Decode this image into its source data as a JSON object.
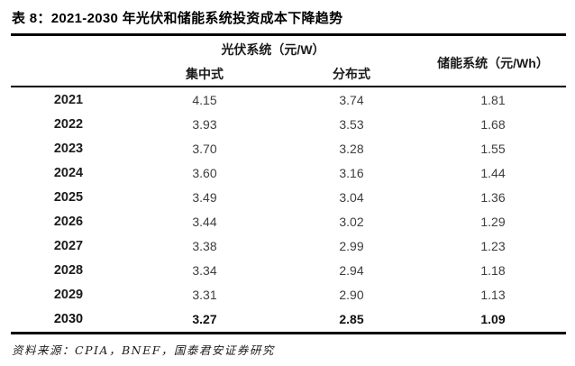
{
  "title": "表 8：2021-2030 年光伏和储能系统投资成本下降趋势",
  "source_note": "资料来源：CPIA，BNEF，国泰君安证券研究",
  "colors": {
    "background": "#ffffff",
    "rule": "#000000",
    "title_text": "#000000",
    "year_text": "#1c1c1c",
    "value_text": "#3d3d3d"
  },
  "table": {
    "header": {
      "pv_group": "光伏系统（元/W）",
      "centralized": "集中式",
      "distributed": "分布式",
      "ess": "储能系统（元/Wh）"
    },
    "rows": [
      {
        "year": "2021",
        "values": [
          "4.15",
          "3.74",
          "1.81"
        ],
        "bold": false
      },
      {
        "year": "2022",
        "values": [
          "3.93",
          "3.53",
          "1.68"
        ],
        "bold": false
      },
      {
        "year": "2023",
        "values": [
          "3.70",
          "3.28",
          "1.55"
        ],
        "bold": false
      },
      {
        "year": "2024",
        "values": [
          "3.60",
          "3.16",
          "1.44"
        ],
        "bold": false
      },
      {
        "year": "2025",
        "values": [
          "3.49",
          "3.04",
          "1.36"
        ],
        "bold": false
      },
      {
        "year": "2026",
        "values": [
          "3.44",
          "3.02",
          "1.29"
        ],
        "bold": false
      },
      {
        "year": "2027",
        "values": [
          "3.38",
          "2.99",
          "1.23"
        ],
        "bold": false
      },
      {
        "year": "2028",
        "values": [
          "3.34",
          "2.94",
          "1.18"
        ],
        "bold": false
      },
      {
        "year": "2029",
        "values": [
          "3.31",
          "2.90",
          "1.13"
        ],
        "bold": false
      },
      {
        "year": "2030",
        "values": [
          "3.27",
          "2.85",
          "1.09"
        ],
        "bold": true
      }
    ]
  }
}
